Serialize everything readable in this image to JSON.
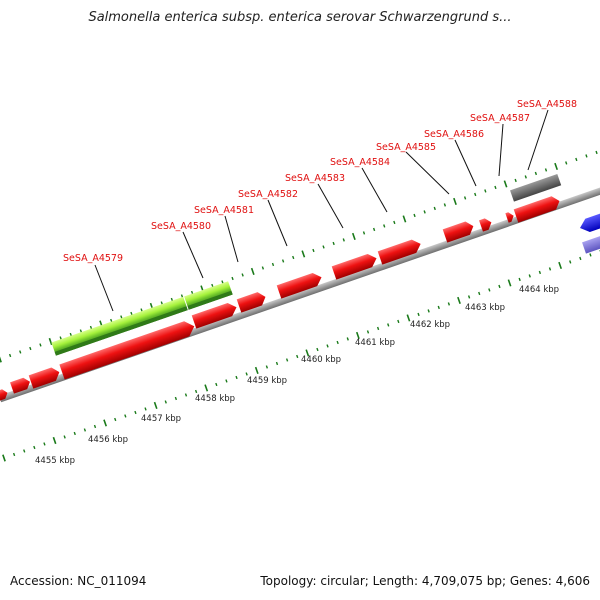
{
  "title": "Salmonella enterica subsp. enterica serovar Schwarzengrund s...",
  "accession": "Accession: NC_011094",
  "topology": "Topology: circular; Length: 4,709,075 bp; Genes: 4,606",
  "colors": {
    "gene_red": "#ee1111",
    "gene_gray": "#666666",
    "gene_blue": "#1010ee",
    "gene_lavender": "#7a72d8",
    "green_light": "#a6f23c",
    "green_dark": "#2f8a1c",
    "backbone": "#999999",
    "tick_green": "#1a7a1a",
    "label_red": "#e01010"
  },
  "kbp_labels": [
    "4455 kbp",
    "4456 kbp",
    "4457 kbp",
    "4458 kbp",
    "4459 kbp",
    "4460 kbp",
    "4461 kbp",
    "4462 kbp",
    "4463 kbp",
    "4464 kbp"
  ],
  "gene_labels": [
    "SeSA_A4579",
    "SeSA_A4580",
    "SeSA_A4581",
    "SeSA_A4582",
    "SeSA_A4583",
    "SeSA_A4584",
    "SeSA_A4585",
    "SeSA_A4586",
    "SeSA_A4587",
    "SeSA_A4588"
  ]
}
